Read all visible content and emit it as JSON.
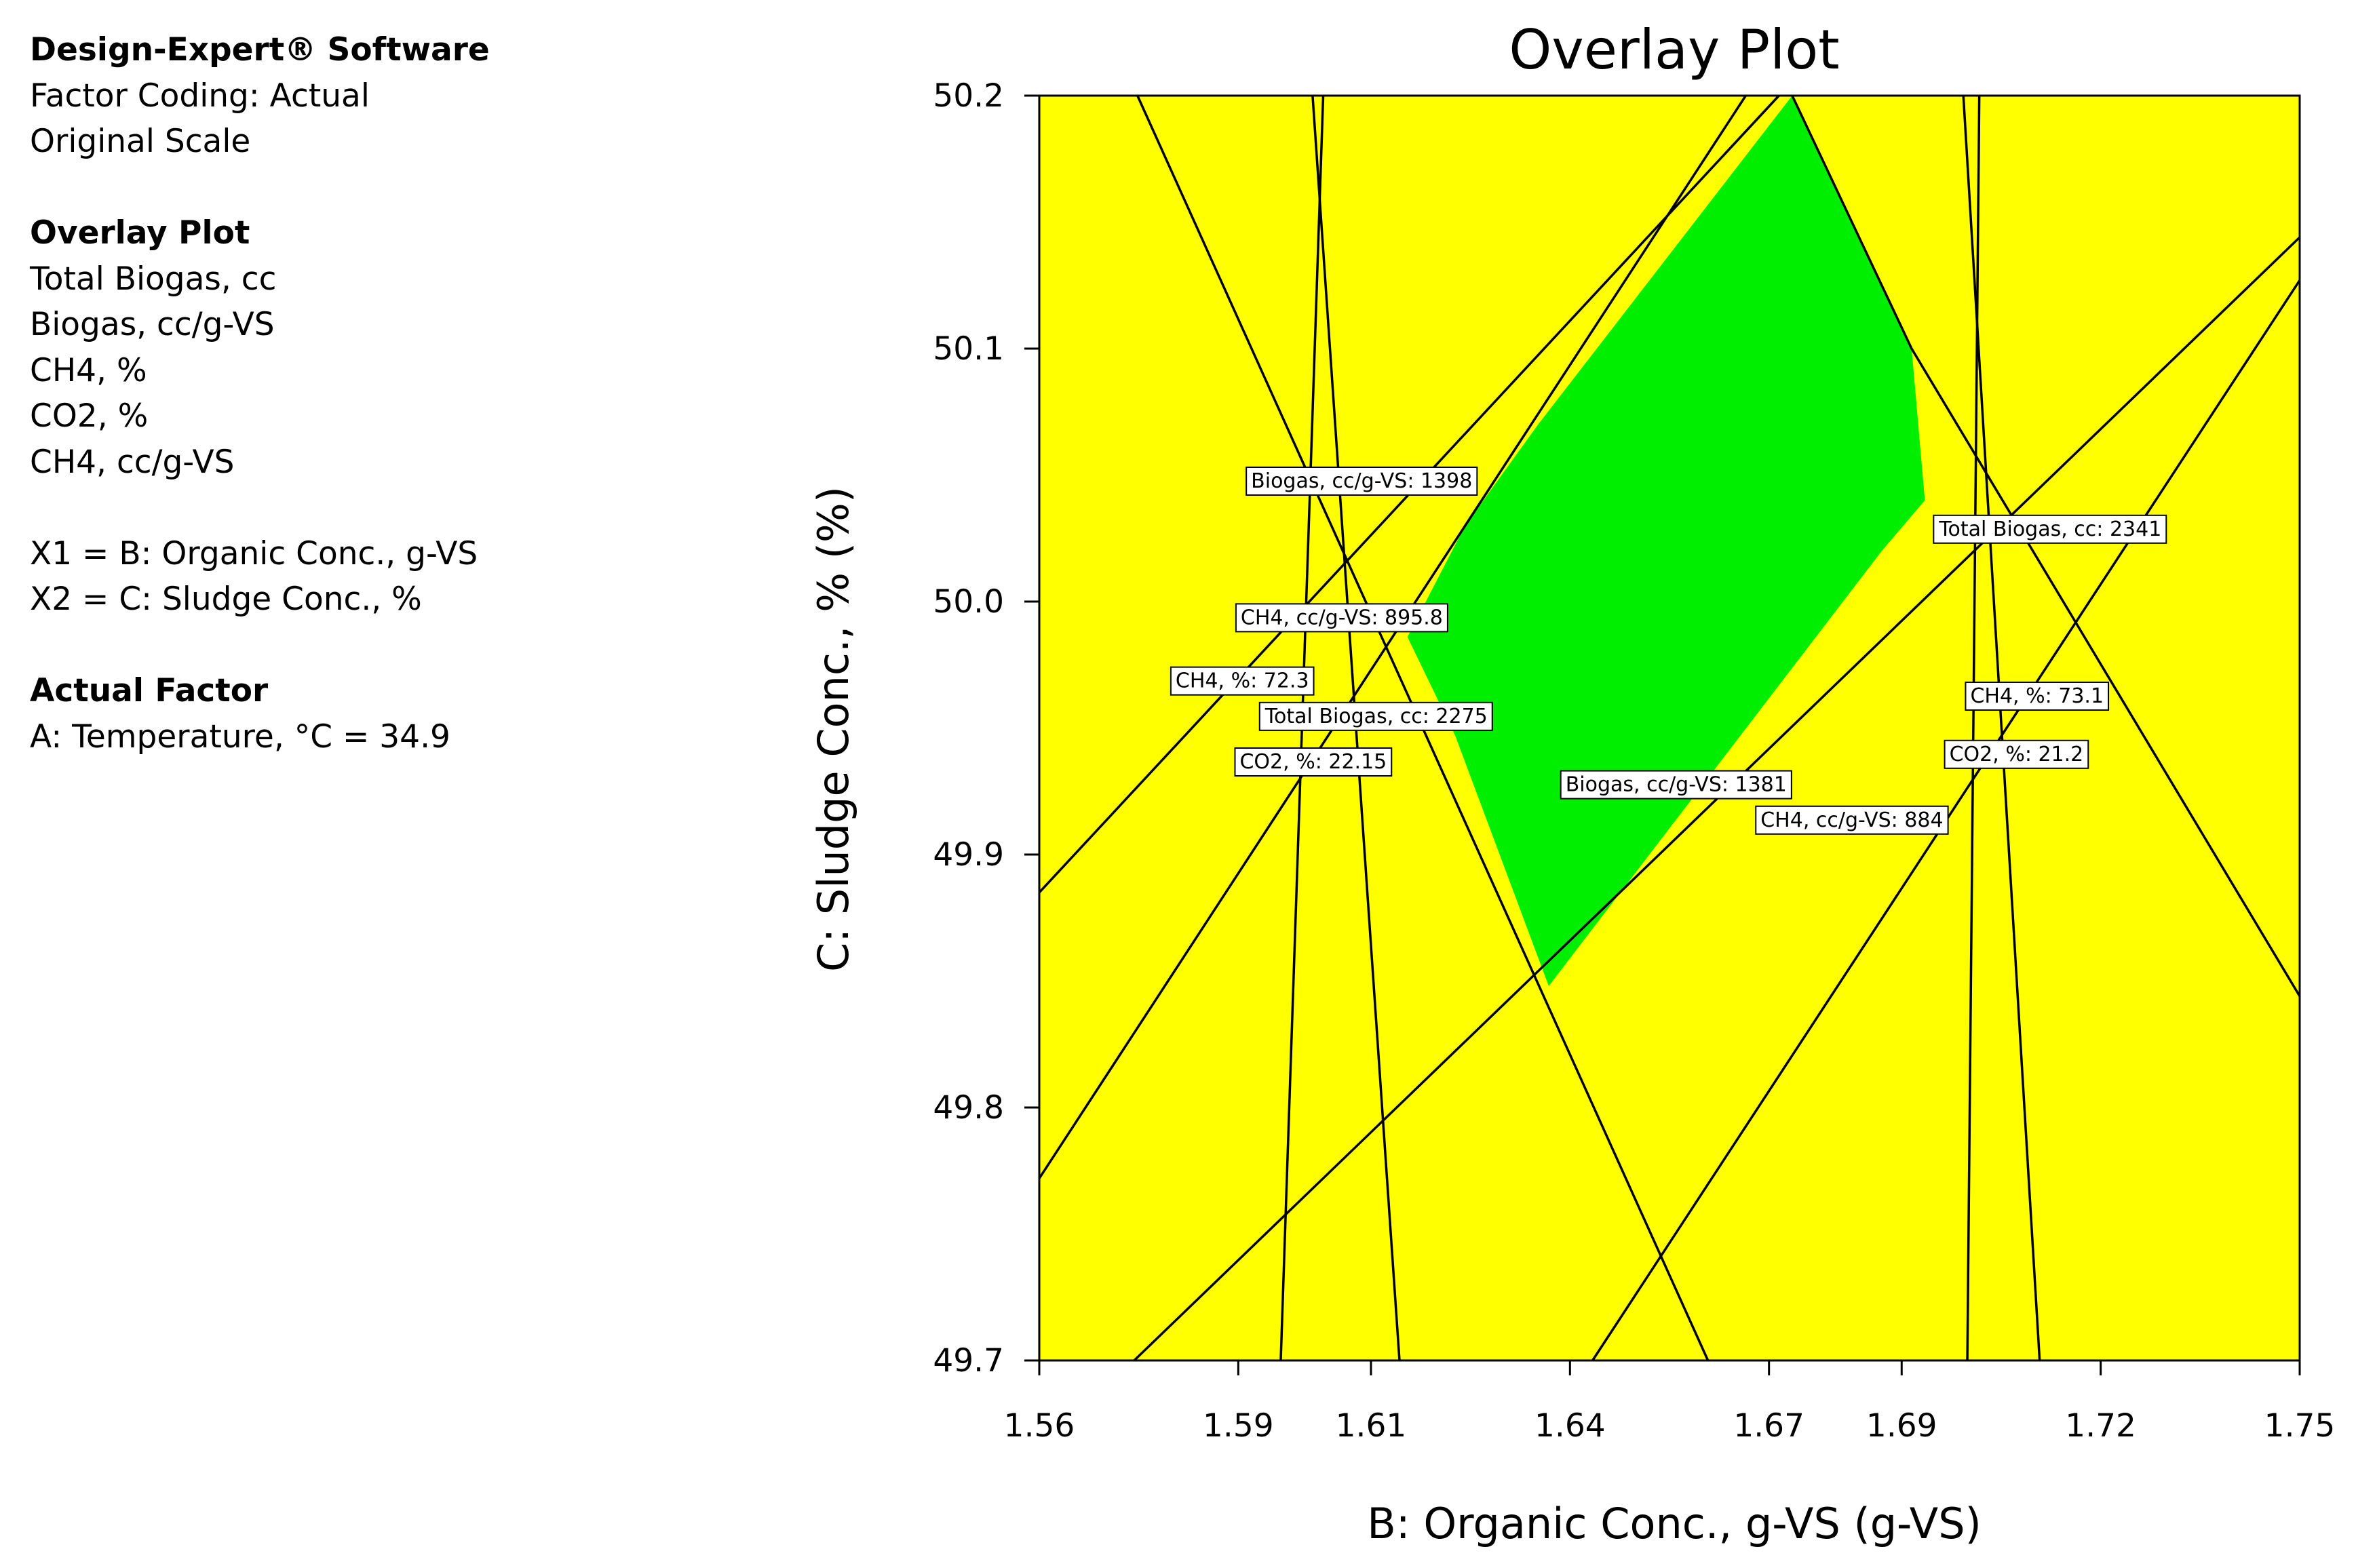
{
  "info_panel": {
    "software": "Design-Expert® Software",
    "factor_coding": "Factor Coding: Actual",
    "scale": "Original Scale",
    "overlay_heading": "Overlay Plot",
    "responses": [
      "Total Biogas, cc",
      "Biogas, cc/g-VS",
      "CH4, %",
      "CO2, %",
      "CH4, cc/g-VS"
    ],
    "x1_def": "X1 = B: Organic Conc., g-VS",
    "x2_def": "X2 = C: Sludge Conc., %",
    "actual_factor_heading": "Actual Factor",
    "actual_factor_value": "A: Temperature, °C = 34.9"
  },
  "chart_data": {
    "type": "overlay-contour",
    "title": "Overlay Plot",
    "xlabel": "B: Organic Conc., g-VS (g-VS)",
    "ylabel": "C: Sludge Conc., % (%)",
    "xlim": [
      1.56,
      1.75
    ],
    "ylim": [
      49.7,
      50.2
    ],
    "xticks": [
      1.56,
      1.59,
      1.61,
      1.64,
      1.67,
      1.69,
      1.72,
      1.75
    ],
    "yticks": [
      49.7,
      49.8,
      49.9,
      50.0,
      50.1,
      50.2
    ],
    "xtick_labels": [
      "1.56",
      "1.59",
      "1.61",
      "1.64",
      "1.67",
      "1.69",
      "1.72",
      "1.75"
    ],
    "ytick_labels": [
      "49.7",
      "49.8",
      "49.9",
      "50.0",
      "50.1",
      "50.2"
    ],
    "background_color": "#ffff00",
    "feasible_color": "#00ee00",
    "line_color": "#000000",
    "feasible_region": [
      [
        1.6735,
        50.2
      ],
      [
        1.6915,
        50.1
      ],
      [
        1.6935,
        50.04
      ],
      [
        1.687,
        50.02
      ],
      [
        1.6368,
        49.848
      ],
      [
        1.6227,
        49.947
      ],
      [
        1.6155,
        49.986
      ],
      [
        1.6242,
        50.03
      ],
      [
        1.6352,
        50.07
      ]
    ],
    "contours": [
      {
        "name": "Total Biogas, cc: 2275",
        "points": [
          [
            1.5748,
            50.2
          ],
          [
            1.6608,
            49.7
          ]
        ]
      },
      {
        "name": "Total Biogas, cc: 2341",
        "points": [
          [
            1.6735,
            50.2
          ],
          [
            1.6915,
            50.1
          ],
          [
            1.75,
            49.844
          ]
        ]
      },
      {
        "name": "Biogas, cc/g-VS: 1398",
        "points": [
          [
            1.56,
            49.885
          ],
          [
            1.6715,
            50.2
          ]
        ]
      },
      {
        "name": "Biogas, cc/g-VS: 1381",
        "points": [
          [
            1.5743,
            49.7
          ],
          [
            1.75,
            50.144
          ]
        ]
      },
      {
        "name": "CH4, %: 72.3",
        "points": [
          [
            1.6012,
            50.2
          ],
          [
            1.6143,
            49.7
          ]
        ]
      },
      {
        "name": "CH4, %: 73.1",
        "points": [
          [
            1.6993,
            50.2
          ],
          [
            1.7108,
            49.7
          ]
        ]
      },
      {
        "name": "CO2, %: 22.15",
        "points": [
          [
            1.6028,
            50.2
          ],
          [
            1.5964,
            49.7
          ]
        ]
      },
      {
        "name": "CO2, %: 21.2",
        "points": [
          [
            1.7017,
            50.2
          ],
          [
            1.6999,
            49.7
          ]
        ]
      },
      {
        "name": "CH4, cc/g-VS: 895.8",
        "points": [
          [
            1.56,
            49.772
          ],
          [
            1.6665,
            50.2
          ]
        ]
      },
      {
        "name": "CH4, cc/g-VS: 884",
        "points": [
          [
            1.6434,
            49.7
          ],
          [
            1.75,
            50.127
          ]
        ]
      }
    ],
    "labels": [
      {
        "text": "Biogas, cc/g-VS: 1398",
        "x": 1.6086,
        "y": 50.048
      },
      {
        "text": "Total Biogas, cc: 2341",
        "x": 1.7124,
        "y": 50.029
      },
      {
        "text": "CH4, cc/g-VS: 895.8",
        "x": 1.6056,
        "y": 49.994
      },
      {
        "text": "CH4, %: 72.3",
        "x": 1.5906,
        "y": 49.969
      },
      {
        "text": "Total Biogas, cc: 2275",
        "x": 1.6108,
        "y": 49.955
      },
      {
        "text": "CO2, %: 22.15",
        "x": 1.6013,
        "y": 49.937
      },
      {
        "text": "CH4, %: 73.1",
        "x": 1.7104,
        "y": 49.963
      },
      {
        "text": "CO2, %: 21.2",
        "x": 1.7073,
        "y": 49.94
      },
      {
        "text": "Biogas, cc/g-VS: 1381",
        "x": 1.656,
        "y": 49.928
      },
      {
        "text": "CH4, cc/g-VS: 884",
        "x": 1.6825,
        "y": 49.914
      }
    ]
  }
}
